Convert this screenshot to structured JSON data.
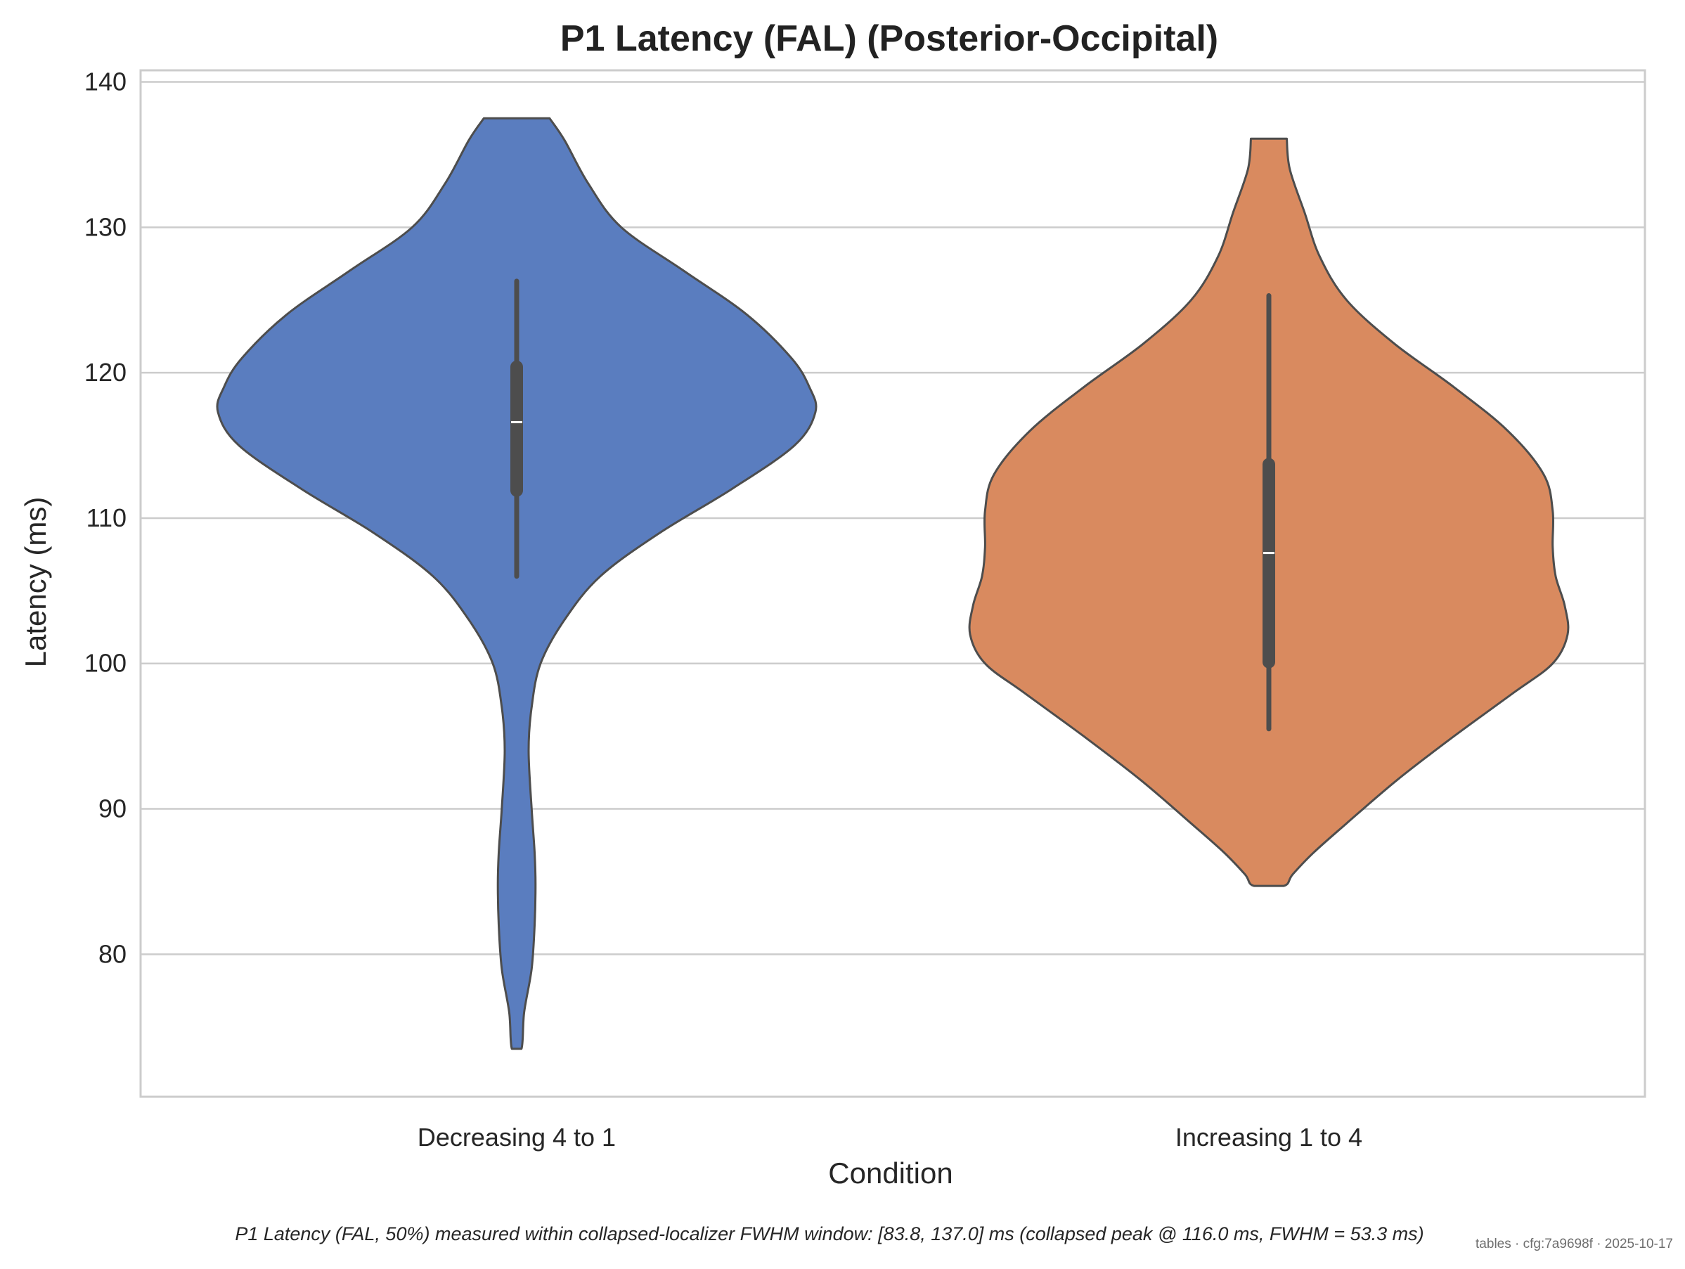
{
  "chart_data": {
    "type": "violin",
    "title": "P1 Latency (FAL) (Posterior-Occipital)",
    "xlabel": "Condition",
    "ylabel": "Latency (ms)",
    "ylim": [
      70.2,
      140.8
    ],
    "yticks": [
      80,
      90,
      100,
      110,
      120,
      130,
      140
    ],
    "grid": "horizontal",
    "categories": [
      "Decreasing 4 to 1",
      "Increasing 1 to 4"
    ],
    "series": [
      {
        "category": "Decreasing 4 to 1",
        "color": "#5a7dbf",
        "min": 106.0,
        "q1": 111.9,
        "median": 116.6,
        "q3": 120.4,
        "max": 126.3,
        "density_profile": [
          [
            137.5,
            0.11
          ],
          [
            136.0,
            0.16
          ],
          [
            133.0,
            0.24
          ],
          [
            130.0,
            0.35
          ],
          [
            127.0,
            0.56
          ],
          [
            124.0,
            0.77
          ],
          [
            121.0,
            0.92
          ],
          [
            119.0,
            0.98
          ],
          [
            117.3,
            1.0
          ],
          [
            115.0,
            0.93
          ],
          [
            112.0,
            0.72
          ],
          [
            109.0,
            0.48
          ],
          [
            106.0,
            0.28
          ],
          [
            103.0,
            0.16
          ],
          [
            100.0,
            0.08
          ],
          [
            97.0,
            0.05
          ],
          [
            94.0,
            0.04
          ],
          [
            90.0,
            0.05
          ],
          [
            87.0,
            0.06
          ],
          [
            84.8,
            0.063
          ],
          [
            82.0,
            0.06
          ],
          [
            79.0,
            0.05
          ],
          [
            76.0,
            0.025
          ],
          [
            73.5,
            0.016
          ]
        ]
      },
      {
        "category": "Increasing 1 to 4",
        "color": "#d98a5f",
        "min": 95.5,
        "q1": 100.1,
        "median": 107.6,
        "q3": 113.7,
        "max": 125.3,
        "density_profile": [
          [
            136.1,
            0.06
          ],
          [
            134.0,
            0.07
          ],
          [
            131.0,
            0.12
          ],
          [
            128.0,
            0.17
          ],
          [
            125.0,
            0.26
          ],
          [
            122.0,
            0.42
          ],
          [
            119.0,
            0.62
          ],
          [
            116.0,
            0.8
          ],
          [
            113.0,
            0.92
          ],
          [
            110.5,
            0.95
          ],
          [
            108.0,
            0.95
          ],
          [
            106.0,
            0.96
          ],
          [
            104.0,
            0.99
          ],
          [
            102.0,
            1.0
          ],
          [
            100.0,
            0.95
          ],
          [
            98.0,
            0.82
          ],
          [
            95.0,
            0.62
          ],
          [
            92.0,
            0.43
          ],
          [
            89.0,
            0.26
          ],
          [
            87.0,
            0.15
          ],
          [
            85.5,
            0.08
          ],
          [
            84.7,
            0.05
          ]
        ]
      }
    ]
  },
  "caption": "P1 Latency (FAL, 50%) measured within collapsed-localizer FWHM window: [83.8, 137.0] ms (collapsed peak @ 116.0 ms, FWHM = 53.3 ms)",
  "watermark": "tables · cfg:7a9698f · 2025-10-17",
  "colors": {
    "grid": "#cccccc",
    "frame": "#cccccc",
    "outline": "#4d4d4d",
    "box": "#4d4d4d",
    "median": "#ffffff"
  }
}
